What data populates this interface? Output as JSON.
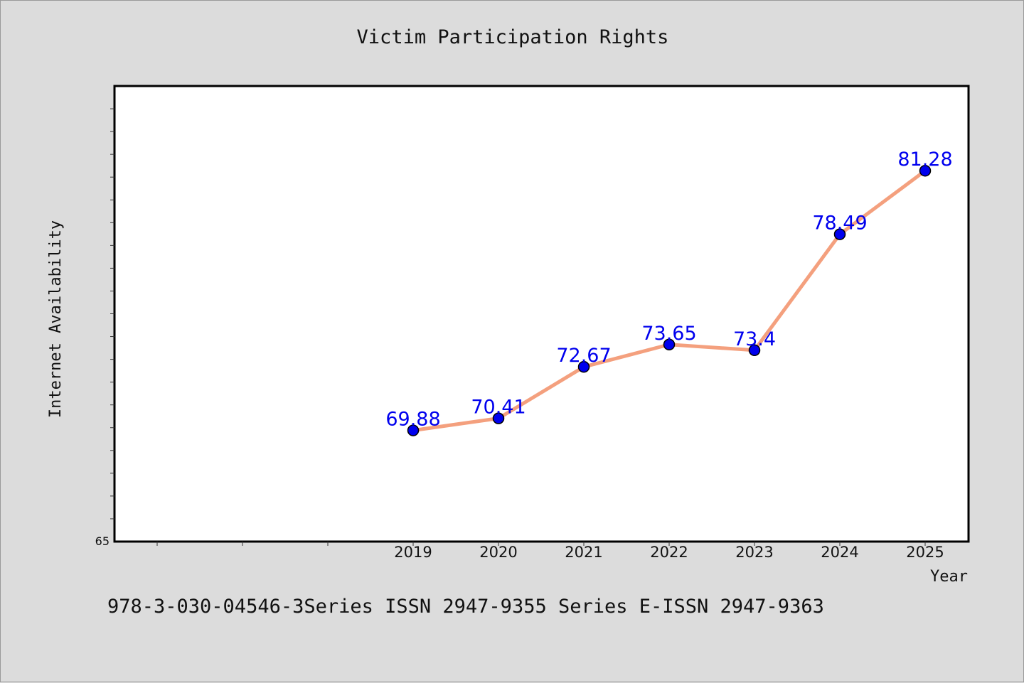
{
  "chart_data": {
    "type": "line",
    "title": "Victim Participation Rights",
    "xlabel": "Year",
    "ylabel": "Internet Availability",
    "categories": [
      "2019",
      "2020",
      "2021",
      "2022",
      "2023",
      "2024",
      "2025"
    ],
    "x_slots": 10,
    "x_first_labeled_slot": 3,
    "series": [
      {
        "values": [
          69.88,
          70.41,
          72.67,
          73.65,
          73.4,
          78.49,
          81.28
        ],
        "value_labels": [
          "69.88",
          "70.41",
          "72.67",
          "73.65",
          "73.4",
          "78.49",
          "81.28"
        ]
      }
    ],
    "y_tick_label": "65",
    "ylim": [
      65,
      85
    ],
    "grid": false,
    "line_color": "#f4a07e",
    "marker_color": "#0000ee",
    "label_color": "#0000ee"
  },
  "footer": {
    "text": "978-3-030-04546-3Series ISSN 2947-9355 Series E-ISSN 2947-9363"
  }
}
